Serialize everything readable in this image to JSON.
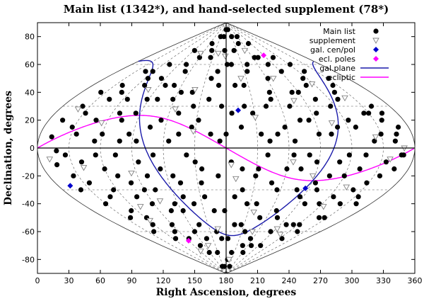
{
  "chart_data": {
    "type": "scatter",
    "title": "Main list (1342*), and hand-selected supplement (78*)",
    "xlabel": "Right Ascension, degrees",
    "ylabel": "Declination, degrees",
    "xlim": [
      0,
      360
    ],
    "ylim": [
      -90,
      90
    ],
    "xticks": [
      0,
      30,
      60,
      90,
      120,
      150,
      180,
      210,
      240,
      270,
      300,
      330,
      360
    ],
    "yticks": [
      -80,
      -60,
      -40,
      -20,
      0,
      20,
      40,
      60,
      80
    ],
    "projection": "sinusoidal (equal-area), centered at RA 180",
    "grid": true,
    "legend_position": "top-right",
    "colors": {
      "main": "#000000",
      "supplement": "#808080",
      "galactic_markers": "#0000cc",
      "galactic_plane": "#1a1aaa",
      "ecliptic_poles": "#ff00ff",
      "ecliptic": "#ff00ff"
    },
    "series": [
      {
        "name": "Main list",
        "marker": "filled-circle",
        "points": [
          [
            12,
            8
          ],
          [
            15,
            -12
          ],
          [
            22,
            30
          ],
          [
            25,
            -20
          ],
          [
            35,
            10
          ],
          [
            40,
            45
          ],
          [
            45,
            -35
          ],
          [
            48,
            20
          ],
          [
            55,
            -5
          ],
          [
            58,
            55
          ],
          [
            62,
            -50
          ],
          [
            65,
            35
          ],
          [
            70,
            -20
          ],
          [
            72,
            60
          ],
          [
            78,
            5
          ],
          [
            82,
            -60
          ],
          [
            85,
            25
          ],
          [
            88,
            -40
          ],
          [
            92,
            70
          ],
          [
            95,
            -10
          ],
          [
            98,
            45
          ],
          [
            102,
            -30
          ],
          [
            105,
            15
          ],
          [
            108,
            -70
          ],
          [
            112,
            55
          ],
          [
            115,
            -15
          ],
          [
            118,
            35
          ],
          [
            122,
            -45
          ],
          [
            125,
            5
          ],
          [
            128,
            75
          ],
          [
            132,
            -25
          ],
          [
            135,
            -55
          ],
          [
            138,
            40
          ],
          [
            142,
            -5
          ],
          [
            145,
            65
          ],
          [
            148,
            -75
          ],
          [
            152,
            20
          ],
          [
            155,
            -35
          ],
          [
            158,
            50
          ],
          [
            162,
            -60
          ],
          [
            165,
            10
          ],
          [
            168,
            80
          ],
          [
            172,
            -20
          ],
          [
            175,
            30
          ],
          [
            178,
            -45
          ],
          [
            182,
            60
          ],
          [
            185,
            -10
          ],
          [
            188,
            -80
          ],
          [
            192,
            45
          ],
          [
            195,
            15
          ],
          [
            198,
            -30
          ],
          [
            202,
            70
          ],
          [
            205,
            -55
          ],
          [
            208,
            25
          ],
          [
            212,
            -15
          ],
          [
            215,
            55
          ],
          [
            218,
            -40
          ],
          [
            222,
            5
          ],
          [
            225,
            75
          ],
          [
            228,
            -25
          ],
          [
            232,
            35
          ],
          [
            235,
            -65
          ],
          [
            238,
            15
          ],
          [
            242,
            50
          ],
          [
            245,
            -5
          ],
          [
            248,
            -45
          ],
          [
            252,
            65
          ],
          [
            255,
            20
          ],
          [
            258,
            -30
          ],
          [
            262,
            40
          ],
          [
            265,
            -60
          ],
          [
            268,
            -10
          ],
          [
            272,
            55
          ],
          [
            275,
            25
          ],
          [
            278,
            -40
          ],
          [
            282,
            10
          ],
          [
            285,
            -20
          ],
          [
            288,
            45
          ],
          [
            292,
            -55
          ],
          [
            295,
            30
          ],
          [
            298,
            -5
          ],
          [
            302,
            60
          ],
          [
            305,
            -35
          ],
          [
            308,
            15
          ],
          [
            312,
            -15
          ],
          [
            315,
            40
          ],
          [
            318,
            -50
          ],
          [
            322,
            5
          ],
          [
            325,
            25
          ],
          [
            328,
            -25
          ],
          [
            332,
            50
          ],
          [
            335,
            -10
          ],
          [
            338,
            20
          ],
          [
            342,
            -40
          ],
          [
            345,
            10
          ],
          [
            348,
            -5
          ],
          [
            350,
            15
          ],
          [
            30,
            -40
          ],
          [
            40,
            -10
          ],
          [
            50,
            40
          ],
          [
            60,
            10
          ],
          [
            70,
            45
          ],
          [
            80,
            -25
          ],
          [
            90,
            -55
          ],
          [
            100,
            35
          ],
          [
            110,
            -5
          ],
          [
            120,
            65
          ],
          [
            130,
            25
          ],
          [
            140,
            -40
          ],
          [
            150,
            -10
          ],
          [
            160,
            35
          ],
          [
            170,
            -65
          ],
          [
            180,
            10
          ],
          [
            190,
            -35
          ],
          [
            200,
            30
          ],
          [
            210,
            -20
          ],
          [
            220,
            60
          ],
          [
            230,
            -50
          ],
          [
            240,
            -15
          ],
          [
            250,
            30
          ],
          [
            260,
            -5
          ],
          [
            270,
            10
          ],
          [
            280,
            -55
          ],
          [
            290,
            15
          ],
          [
            300,
            -20
          ],
          [
            310,
            35
          ],
          [
            320,
            -30
          ],
          [
            330,
            10
          ],
          [
            340,
            30
          ],
          [
            20,
            -30
          ],
          [
            28,
            15
          ],
          [
            36,
            -25
          ],
          [
            44,
            35
          ],
          [
            52,
            -45
          ],
          [
            60,
            -15
          ],
          [
            68,
            25
          ],
          [
            76,
            -35
          ],
          [
            84,
            50
          ],
          [
            96,
            -65
          ],
          [
            104,
            60
          ],
          [
            116,
            -40
          ],
          [
            124,
            40
          ],
          [
            136,
            -65
          ],
          [
            144,
            30
          ],
          [
            156,
            -15
          ],
          [
            164,
            -45
          ],
          [
            176,
            70
          ],
          [
            184,
            -65
          ],
          [
            196,
            -15
          ],
          [
            204,
            45
          ],
          [
            216,
            -60
          ],
          [
            224,
            30
          ],
          [
            236,
            -30
          ],
          [
            244,
            65
          ],
          [
            256,
            -50
          ],
          [
            264,
            20
          ],
          [
            276,
            -70
          ],
          [
            284,
            35
          ],
          [
            296,
            -40
          ],
          [
            304,
            20
          ],
          [
            316,
            -60
          ],
          [
            324,
            45
          ],
          [
            336,
            -20
          ],
          [
            344,
            25
          ],
          [
            18,
            -2
          ],
          [
            32,
            25
          ],
          [
            54,
            5
          ],
          [
            74,
            -5
          ],
          [
            94,
            5
          ],
          [
            114,
            20
          ],
          [
            134,
            10
          ],
          [
            154,
            -25
          ],
          [
            174,
            5
          ],
          [
            194,
            -55
          ],
          [
            214,
            10
          ],
          [
            234,
            40
          ],
          [
            254,
            -15
          ],
          [
            274,
            -25
          ],
          [
            294,
            50
          ],
          [
            314,
            -5
          ],
          [
            334,
            -35
          ],
          [
            100,
            -20
          ],
          [
            120,
            -60
          ],
          [
            140,
            70
          ],
          [
            160,
            -85
          ],
          [
            180,
            85
          ],
          [
            200,
            -75
          ],
          [
            220,
            -5
          ],
          [
            240,
            80
          ],
          [
            260,
            60
          ],
          [
            280,
            -30
          ],
          [
            66,
            -65
          ],
          [
            86,
            10
          ],
          [
            106,
            -45
          ],
          [
            126,
            -20
          ],
          [
            146,
            15
          ],
          [
            166,
            55
          ],
          [
            186,
            25
          ],
          [
            206,
            -40
          ],
          [
            226,
            -70
          ],
          [
            246,
            5
          ],
          [
            266,
            -35
          ],
          [
            286,
            65
          ],
          [
            306,
            -65
          ],
          [
            326,
            -50
          ],
          [
            346,
            -15
          ],
          [
            14,
            20
          ],
          [
            26,
            -5
          ],
          [
            38,
            -50
          ],
          [
            46,
            55
          ],
          [
            56,
            -30
          ],
          [
            64,
            50
          ],
          [
            74,
            20
          ],
          [
            88,
            35
          ],
          [
            90,
            -30
          ],
          [
            110,
            45
          ],
          [
            130,
            -35
          ],
          [
            150,
            80
          ],
          [
            170,
            45
          ],
          [
            190,
            60
          ],
          [
            210,
            80
          ],
          [
            230,
            10
          ],
          [
            250,
            -70
          ],
          [
            270,
            40
          ],
          [
            290,
            -10
          ],
          [
            310,
            55
          ],
          [
            330,
            25
          ],
          [
            350,
            -5
          ],
          [
            24,
            40
          ],
          [
            42,
            -60
          ],
          [
            58,
            -55
          ],
          [
            118,
            -75
          ],
          [
            138,
            -85
          ],
          [
            198,
            85
          ],
          [
            218,
            -85
          ],
          [
            242,
            -75
          ],
          [
            262,
            75
          ],
          [
            302,
            -55
          ],
          [
            322,
            -40
          ],
          [
            342,
            5
          ]
        ]
      },
      {
        "name": "supplement",
        "marker": "open-triangle-down",
        "points": [
          [
            20,
            28
          ],
          [
            40,
            -14
          ],
          [
            62,
            -52
          ],
          [
            80,
            42
          ],
          [
            100,
            -38
          ],
          [
            115,
            68
          ],
          [
            130,
            -70
          ],
          [
            148,
            12
          ],
          [
            165,
            -58
          ],
          [
            178,
            66
          ],
          [
            190,
            -22
          ],
          [
            202,
            50
          ],
          [
            218,
            -46
          ],
          [
            232,
            70
          ],
          [
            245,
            -10
          ],
          [
            258,
            34
          ],
          [
            272,
            -58
          ],
          [
            286,
            18
          ],
          [
            298,
            46
          ],
          [
            310,
            -28
          ],
          [
            324,
            8
          ],
          [
            338,
            -8
          ],
          [
            350,
            0
          ],
          [
            10,
            -8
          ],
          [
            55,
            18
          ],
          [
            92,
            -74
          ],
          [
            140,
            42
          ],
          [
            196,
            -80
          ],
          [
            230,
            -60
          ],
          [
            268,
            -20
          ],
          [
            305,
            -42
          ],
          [
            320,
            36
          ],
          [
            70,
            -42
          ],
          [
            85,
            -18
          ],
          [
            125,
            28
          ],
          [
            160,
            68
          ],
          [
            185,
            -12
          ],
          [
            210,
            22
          ],
          [
            250,
            50
          ],
          [
            290,
            -62
          ]
        ]
      },
      {
        "name": "gal. cen/pol",
        "marker": "filled-diamond",
        "points": [
          [
            266.4,
            -28.9
          ],
          [
            192.9,
            27.1
          ],
          [
            12.9,
            -27.1
          ]
        ]
      },
      {
        "name": "ecl. poles",
        "marker": "filled-diamond",
        "points": [
          [
            270,
            66.56
          ],
          [
            90,
            -66.56
          ]
        ]
      },
      {
        "name": "gal.plane",
        "line": true,
        "description": "great circle through galactic plane"
      },
      {
        "name": "ecliptic",
        "line": true,
        "description": "sinusoid, max +23.44 at RA 90, min -23.44 at RA 270"
      }
    ]
  }
}
